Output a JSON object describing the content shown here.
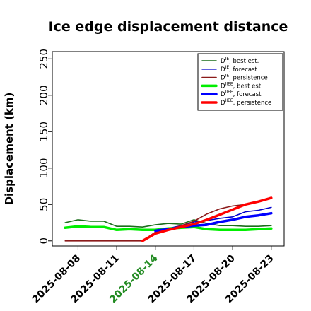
{
  "chart_data": {
    "type": "line",
    "title": "Ice edge displacement distance",
    "xlabel": "",
    "ylabel": "Displacement (km)",
    "ylim": [
      -7,
      260
    ],
    "yticks": [
      0,
      50,
      100,
      150,
      200,
      250
    ],
    "xlim": [
      "2025-08-06",
      "2025-08-24"
    ],
    "xticks": [
      "2025-08-08",
      "2025-08-11",
      "2025-08-14",
      "2025-08-17",
      "2025-08-20",
      "2025-08-23"
    ],
    "xtick_colors": [
      "#000000",
      "#000000",
      "#228B22",
      "#000000",
      "#000000",
      "#000000"
    ],
    "grid": false,
    "legend_position": "top-right",
    "series": [
      {
        "name": "D^IE, best est.",
        "label_base": "D",
        "label_sup": "IE",
        "label_rest": ", best est.",
        "color": "#1a6e1a",
        "width": "thin",
        "x": [
          "2025-08-07",
          "2025-08-08",
          "2025-08-09",
          "2025-08-10",
          "2025-08-11",
          "2025-08-12",
          "2025-08-13",
          "2025-08-14",
          "2025-08-15",
          "2025-08-16",
          "2025-08-17",
          "2025-08-18",
          "2025-08-19",
          "2025-08-20",
          "2025-08-21",
          "2025-08-22",
          "2025-08-23"
        ],
        "values": [
          25,
          29,
          27,
          27,
          20,
          20,
          19,
          22,
          24,
          23,
          29,
          24,
          21,
          21,
          20,
          20,
          21
        ]
      },
      {
        "name": "D^IE, forecast",
        "label_base": "D",
        "label_sup": "IE",
        "label_rest": ", forecast",
        "color": "#0000cc",
        "width": "thin",
        "x": [
          "2025-08-14",
          "2025-08-15",
          "2025-08-16",
          "2025-08-17",
          "2025-08-18",
          "2025-08-19",
          "2025-08-20",
          "2025-08-21",
          "2025-08-22",
          "2025-08-23"
        ],
        "values": [
          14,
          17,
          21,
          26,
          28,
          31,
          33,
          40,
          42,
          46
        ]
      },
      {
        "name": "D^IE, persistence",
        "label_base": "D",
        "label_sup": "IE",
        "label_rest": ", persistence",
        "color": "#8b1a1a",
        "width": "thin",
        "x": [
          "2025-08-07",
          "2025-08-08",
          "2025-08-09",
          "2025-08-10",
          "2025-08-11",
          "2025-08-12",
          "2025-08-13",
          "2025-08-14",
          "2025-08-15",
          "2025-08-16",
          "2025-08-17",
          "2025-08-18",
          "2025-08-19",
          "2025-08-20",
          "2025-08-21",
          "2025-08-22",
          "2025-08-23"
        ],
        "values": [
          0,
          0,
          0,
          0,
          0,
          0,
          0,
          12,
          16,
          21,
          27,
          37,
          44,
          48,
          50,
          54,
          60
        ]
      },
      {
        "name": "D^IIEE, best est.",
        "label_base": "D",
        "label_sup": "IIEE",
        "label_rest": ", best est.",
        "color": "#00ee00",
        "width": "thick",
        "x": [
          "2025-08-07",
          "2025-08-08",
          "2025-08-09",
          "2025-08-10",
          "2025-08-11",
          "2025-08-12",
          "2025-08-13",
          "2025-08-14",
          "2025-08-15",
          "2025-08-16",
          "2025-08-17",
          "2025-08-18",
          "2025-08-19",
          "2025-08-20",
          "2025-08-21",
          "2025-08-22",
          "2025-08-23"
        ],
        "values": [
          18,
          20,
          19,
          19,
          15,
          16,
          15,
          15,
          17,
          18,
          19,
          16,
          15,
          15,
          15,
          16,
          17
        ]
      },
      {
        "name": "D^IIEE, forecast",
        "label_base": "D",
        "label_sup": "IIEE",
        "label_rest": ", forecast",
        "color": "#0000ff",
        "width": "thick",
        "x": [
          "2025-08-14",
          "2025-08-15",
          "2025-08-16",
          "2025-08-17",
          "2025-08-18",
          "2025-08-19",
          "2025-08-20",
          "2025-08-21",
          "2025-08-22",
          "2025-08-23"
        ],
        "values": [
          14,
          16,
          19,
          21,
          22,
          26,
          29,
          33,
          35,
          38
        ]
      },
      {
        "name": "D^IIEE, persistence",
        "label_base": "D",
        "label_sup": "IIEE",
        "label_rest": ", persistence",
        "color": "#ff0000",
        "width": "thick",
        "x": [
          "2025-08-13",
          "2025-08-14",
          "2025-08-15",
          "2025-08-16",
          "2025-08-17",
          "2025-08-18",
          "2025-08-19",
          "2025-08-20",
          "2025-08-21",
          "2025-08-22",
          "2025-08-23"
        ],
        "values": [
          0,
          10,
          15,
          19,
          23,
          29,
          36,
          43,
          50,
          54,
          59
        ]
      }
    ]
  }
}
